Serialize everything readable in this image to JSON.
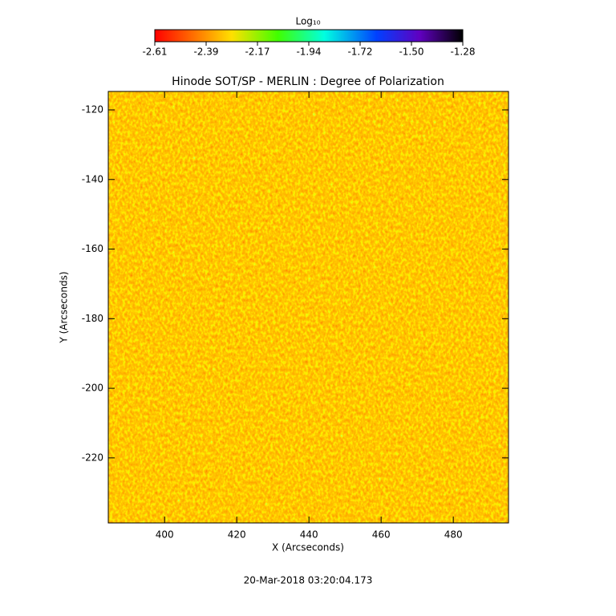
{
  "chart_data": {
    "type": "heatmap",
    "title": "Hinode SOT/SP - MERLIN : Degree of Polarization",
    "x_label": "X (Arcseconds)",
    "y_label": "Y (Arcseconds)",
    "colorbar_label": "Log₁₀",
    "colorbar_lim": [
      -2.61,
      -1.28
    ],
    "colorbar_ticks": [
      {
        "value": -2.61,
        "label": "-2.61"
      },
      {
        "value": -2.3883,
        "label": "-2.39"
      },
      {
        "value": -2.1667,
        "label": "-2.17"
      },
      {
        "value": -1.945,
        "label": "-1.94"
      },
      {
        "value": -1.7233,
        "label": "-1.72"
      },
      {
        "value": -1.5017,
        "label": "-1.50"
      },
      {
        "value": -1.28,
        "label": "-1.28"
      }
    ],
    "xlim": [
      384.4,
      495.3
    ],
    "xticks": [
      400,
      420,
      440,
      460,
      480
    ],
    "ylim": [
      -238.7,
      -114.7
    ],
    "yticks": [
      -120,
      -140,
      -160,
      -180,
      -200,
      -220
    ],
    "footer": "20-Mar-2018 03:20:04.173"
  }
}
